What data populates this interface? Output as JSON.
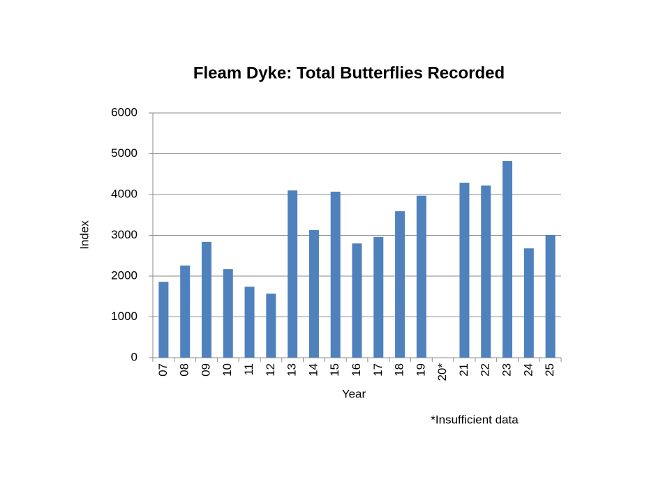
{
  "chart_data": {
    "type": "bar",
    "title": "Fleam Dyke:  Total Butterflies Recorded",
    "x_label": "Year",
    "y_label": "Index",
    "annotation": "*Insufficient data",
    "categories": [
      "07",
      "08",
      "09",
      "10",
      "11",
      "12",
      "13",
      "14",
      "15",
      "16",
      "17",
      "18",
      "19",
      "20*",
      "21",
      "22",
      "23",
      "24",
      "25"
    ],
    "values": [
      1860,
      2260,
      2840,
      2170,
      1740,
      1570,
      4100,
      3130,
      4070,
      2800,
      2960,
      3590,
      3970,
      null,
      4290,
      4220,
      4820,
      2680,
      3010
    ],
    "color": "#4f81bd",
    "ylim": [
      0,
      6000
    ],
    "yticks": [
      0,
      1000,
      2000,
      3000,
      4000,
      5000,
      6000
    ],
    "grid": true
  }
}
